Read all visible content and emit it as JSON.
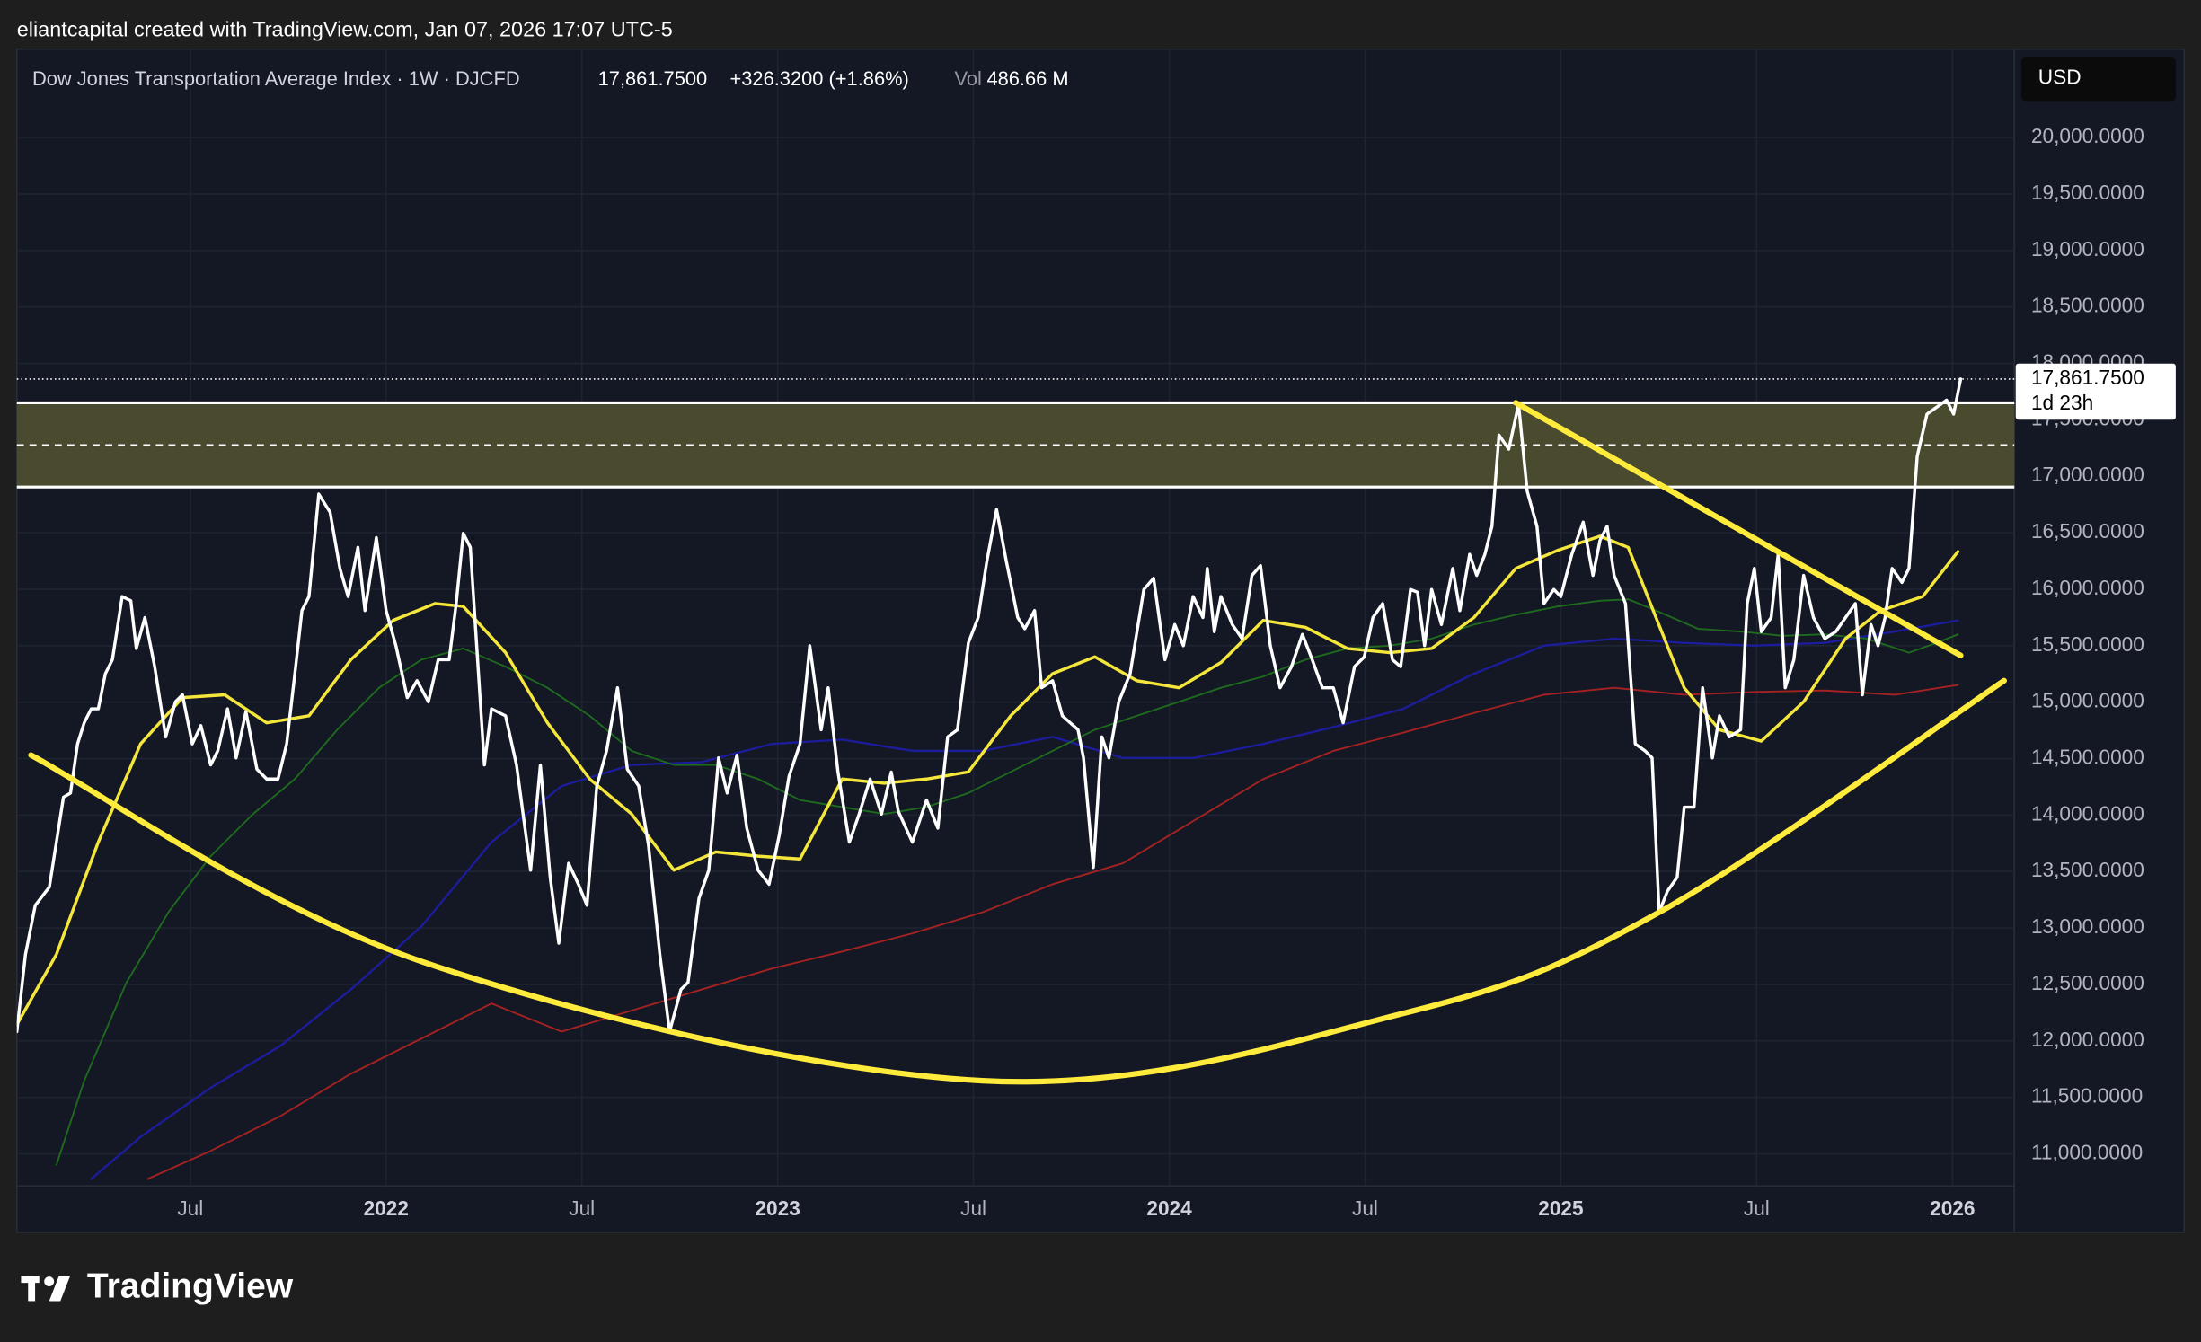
{
  "header": {
    "attribution": "eliantcapital created with TradingView.com, Jan 07, 2026 17:07 UTC-5"
  },
  "footer": {
    "brand": "TradingView"
  },
  "chart_data": {
    "type": "line",
    "title": "Dow Jones Transportation Average Index · 1W · DJCFD",
    "last": {
      "value": 17861.75,
      "label": "17,861.7500"
    },
    "change": "+326.3200 (+1.86%)",
    "volume_label": "Vol",
    "volume": "486.66 M",
    "countdown": "1d 23h",
    "currency": "USD",
    "grid": true,
    "xlim": [
      2021.057,
      2026.158
    ],
    "ylim": [
      10715,
      20783
    ],
    "xticks": [
      {
        "value": 2021.5,
        "label": "Jul"
      },
      2022,
      {
        "value": 2022.5,
        "label": "Jul"
      },
      2023,
      {
        "value": 2023.5,
        "label": "Jul"
      },
      2024,
      {
        "value": 2024.5,
        "label": "Jul"
      },
      2025,
      {
        "value": 2025.5,
        "label": "Jul"
      },
      2026
    ],
    "yticks": [
      {
        "value": 11000,
        "label": "11,000.0000"
      },
      {
        "value": 11500,
        "label": "11,500.0000"
      },
      {
        "value": 12000,
        "label": "12,000.0000"
      },
      {
        "value": 12500,
        "label": "12,500.0000"
      },
      {
        "value": 13000,
        "label": "13,000.0000"
      },
      {
        "value": 13500,
        "label": "13,500.0000"
      },
      {
        "value": 14000,
        "label": "14,000.0000"
      },
      {
        "value": 14500,
        "label": "14,500.0000"
      },
      {
        "value": 15000,
        "label": "15,000.0000"
      },
      {
        "value": 15500,
        "label": "15,500.0000"
      },
      {
        "value": 16000,
        "label": "16,000.0000"
      },
      {
        "value": 16500,
        "label": "16,500.0000"
      },
      {
        "value": 17000,
        "label": "17,000.0000"
      },
      {
        "value": 17500,
        "label": "17,500.0000"
      },
      {
        "value": 18000,
        "label": "18,000.0000"
      },
      {
        "value": 18500,
        "label": "18,500.0000"
      },
      {
        "value": 19000,
        "label": "19,000.0000"
      },
      {
        "value": 19500,
        "label": "19,500.0000"
      },
      {
        "value": 20000,
        "label": "20,000.0000"
      }
    ],
    "zone": {
      "top": 17651,
      "bottom": 16905,
      "mid": 17278
    },
    "series": [
      {
        "color": "#a62222",
        "width": 1.2,
        "x": [
          2021.391,
          2021.552,
          2021.731,
          2021.91,
          2022.09,
          2022.269,
          2022.448,
          2022.627,
          2022.806,
          2022.986,
          2023.165,
          2023.344,
          2023.523,
          2023.702,
          2023.882,
          2024.061,
          2024.24,
          2024.419,
          2024.598,
          2024.778,
          2024.957,
          2025.136,
          2025.315,
          2025.494,
          2025.674,
          2025.853,
          2026.014
        ],
        "values": [
          10777,
          11026,
          11336,
          11709,
          12020,
          12331,
          12082,
          12269,
          12455,
          12641,
          12791,
          12952,
          13139,
          13387,
          13574,
          13947,
          14319,
          14568,
          14730,
          14904,
          15065,
          15127,
          15065,
          15090,
          15103,
          15065,
          15152
        ]
      },
      {
        "color": "#1c1c9c",
        "width": 1.5,
        "x": [
          2021.247,
          2021.373,
          2021.552,
          2021.731,
          2021.91,
          2022.09,
          2022.269,
          2022.448,
          2022.627,
          2022.806,
          2022.986,
          2023.165,
          2023.344,
          2023.523,
          2023.702,
          2023.882,
          2024.061,
          2024.24,
          2024.419,
          2024.598,
          2024.778,
          2024.957,
          2025.136,
          2025.315,
          2025.494,
          2025.674,
          2025.853,
          2026.014
        ],
        "values": [
          10777,
          11150,
          11585,
          11958,
          12455,
          13014,
          13760,
          14257,
          14444,
          14469,
          14630,
          14668,
          14568,
          14568,
          14692,
          14506,
          14506,
          14630,
          14779,
          14941,
          15252,
          15500,
          15562,
          15525,
          15500,
          15525,
          15625,
          15724
        ]
      },
      {
        "color": "#1e6b1e",
        "width": 1.2,
        "x": [
          2021.158,
          2021.229,
          2021.337,
          2021.444,
          2021.552,
          2021.66,
          2021.767,
          2021.875,
          2021.982,
          2022.09,
          2022.197,
          2022.305,
          2022.412,
          2022.52,
          2022.627,
          2022.735,
          2022.842,
          2022.95,
          2023.057,
          2023.165,
          2023.272,
          2023.38,
          2023.487,
          2023.595,
          2023.702,
          2023.81,
          2023.917,
          2024.025,
          2024.132,
          2024.24,
          2024.348,
          2024.455,
          2024.563,
          2024.67,
          2024.778,
          2024.885,
          2024.993,
          2025.1,
          2025.172,
          2025.243,
          2025.351,
          2025.459,
          2025.566,
          2025.674,
          2025.781,
          2025.889,
          2025.96,
          2026.014
        ],
        "values": [
          10901,
          11647,
          12517,
          13139,
          13636,
          14009,
          14319,
          14755,
          15127,
          15376,
          15475,
          15314,
          15127,
          14879,
          14568,
          14444,
          14444,
          14319,
          14133,
          14071,
          14009,
          14071,
          14195,
          14382,
          14568,
          14755,
          14879,
          15003,
          15127,
          15227,
          15376,
          15475,
          15500,
          15562,
          15687,
          15774,
          15848,
          15898,
          15911,
          15811,
          15649,
          15625,
          15587,
          15600,
          15562,
          15438,
          15525,
          15600
        ]
      },
      {
        "color": "#f5e63c",
        "width": 2.2,
        "x": [
          2021.057,
          2021.158,
          2021.265,
          2021.373,
          2021.48,
          2021.588,
          2021.695,
          2021.803,
          2021.91,
          2022.018,
          2022.125,
          2022.197,
          2022.305,
          2022.412,
          2022.52,
          2022.627,
          2022.735,
          2022.842,
          2022.95,
          2023.057,
          2023.165,
          2023.272,
          2023.38,
          2023.487,
          2023.595,
          2023.702,
          2023.81,
          2023.917,
          2024.025,
          2024.132,
          2024.24,
          2024.348,
          2024.455,
          2024.563,
          2024.67,
          2024.778,
          2024.885,
          2024.993,
          2025.1,
          2025.172,
          2025.243,
          2025.315,
          2025.405,
          2025.512,
          2025.62,
          2025.727,
          2025.817,
          2025.924,
          2026.014
        ],
        "values": [
          12144,
          12766,
          13760,
          14630,
          15040,
          15065,
          14817,
          14879,
          15376,
          15724,
          15873,
          15848,
          15438,
          14817,
          14319,
          14009,
          13512,
          13673,
          13636,
          13611,
          14319,
          14282,
          14319,
          14382,
          14879,
          15252,
          15401,
          15190,
          15127,
          15351,
          15724,
          15662,
          15475,
          15438,
          15475,
          15749,
          16184,
          16346,
          16470,
          16370,
          15749,
          15127,
          14755,
          14655,
          15003,
          15562,
          15811,
          15935,
          16333
        ]
      },
      {
        "color": "#ffffff",
        "width": 2.2,
        "x": [
          2021.057,
          2021.079,
          2021.104,
          2021.14,
          2021.158,
          2021.176,
          2021.194,
          2021.212,
          2021.229,
          2021.247,
          2021.265,
          2021.283,
          2021.301,
          2021.326,
          2021.348,
          2021.362,
          2021.384,
          2021.409,
          2021.437,
          2021.462,
          2021.48,
          2021.505,
          2021.527,
          2021.552,
          2021.57,
          2021.595,
          2021.617,
          2021.642,
          2021.67,
          2021.695,
          2021.724,
          2021.746,
          2021.767,
          2021.785,
          2021.803,
          2021.828,
          2021.857,
          2021.882,
          2021.903,
          2021.928,
          2021.946,
          2021.975,
          2022.0,
          2022.025,
          2022.054,
          2022.079,
          2022.108,
          2022.133,
          2022.161,
          2022.179,
          2022.197,
          2022.215,
          2022.251,
          2022.269,
          2022.305,
          2022.333,
          2022.369,
          2022.394,
          2022.419,
          2022.441,
          2022.466,
          2022.491,
          2022.513,
          2022.538,
          2022.563,
          2022.591,
          2022.616,
          2022.645,
          2022.67,
          2022.699,
          2022.724,
          2022.753,
          2022.771,
          2022.799,
          2022.824,
          2022.849,
          2022.871,
          2022.896,
          2022.921,
          2022.95,
          2022.978,
          2023.004,
          2023.029,
          2023.057,
          2023.082,
          2023.111,
          2023.129,
          2023.154,
          2023.183,
          2023.208,
          2023.236,
          2023.265,
          2023.29,
          2023.308,
          2023.344,
          2023.38,
          2023.409,
          2023.434,
          2023.459,
          2023.487,
          2023.512,
          2023.534,
          2023.559,
          2023.584,
          2023.613,
          2023.631,
          2023.656,
          2023.674,
          2023.702,
          2023.727,
          2023.767,
          2023.781,
          2023.806,
          2023.828,
          2023.846,
          2023.871,
          2023.9,
          2023.935,
          2023.96,
          2023.989,
          2024.014,
          2024.036,
          2024.061,
          2024.086,
          2024.097,
          2024.115,
          2024.132,
          2024.161,
          2024.186,
          2024.211,
          2024.233,
          2024.258,
          2024.283,
          2024.312,
          2024.34,
          2024.365,
          2024.391,
          2024.419,
          2024.444,
          2024.473,
          2024.498,
          2024.52,
          2024.545,
          2024.57,
          2024.591,
          2024.616,
          2024.634,
          2024.652,
          2024.67,
          2024.695,
          2024.724,
          2024.742,
          2024.767,
          2024.785,
          2024.806,
          2024.824,
          2024.842,
          2024.867,
          2024.892,
          2024.914,
          2024.939,
          2024.957,
          2024.982,
          2025.0,
          2025.028,
          2025.057,
          2025.082,
          2025.1,
          2025.118,
          2025.136,
          2025.165,
          2025.19,
          2025.215,
          2025.233,
          2025.251,
          2025.272,
          2025.297,
          2025.315,
          2025.34,
          2025.362,
          2025.387,
          2025.405,
          2025.43,
          2025.459,
          2025.476,
          2025.494,
          2025.512,
          2025.537,
          2025.555,
          2025.573,
          2025.595,
          2025.62,
          2025.645,
          2025.674,
          2025.702,
          2025.727,
          2025.752,
          2025.77,
          2025.792,
          2025.81,
          2025.828,
          2025.846,
          2025.871,
          2025.889,
          2025.91,
          2025.935,
          2025.96,
          2025.985,
          2026.003,
          2026.021
        ],
        "values": [
          12082,
          12766,
          13200,
          13362,
          13760,
          14158,
          14195,
          14630,
          14817,
          14941,
          14941,
          15252,
          15376,
          15935,
          15898,
          15475,
          15749,
          15314,
          14692,
          15003,
          15065,
          14630,
          14792,
          14444,
          14568,
          14941,
          14506,
          14916,
          14406,
          14319,
          14319,
          14630,
          15252,
          15811,
          15935,
          16843,
          16681,
          16184,
          15935,
          16371,
          15811,
          16457,
          15811,
          15500,
          15040,
          15190,
          15003,
          15376,
          15376,
          15873,
          16495,
          16371,
          14444,
          14941,
          14879,
          14444,
          13511,
          14444,
          13449,
          12865,
          13573,
          13387,
          13201,
          14257,
          14568,
          15127,
          14406,
          14257,
          13735,
          12766,
          12082,
          12455,
          12517,
          13263,
          13511,
          14506,
          14195,
          14530,
          13884,
          13511,
          13387,
          13822,
          14344,
          14630,
          15500,
          14755,
          15127,
          14381,
          13760,
          14008,
          14319,
          14008,
          14381,
          14033,
          13760,
          14133,
          13884,
          14692,
          14755,
          15525,
          15749,
          16246,
          16706,
          16246,
          15749,
          15650,
          15811,
          15127,
          15190,
          14879,
          14755,
          14506,
          13536,
          14692,
          14506,
          15003,
          15252,
          15998,
          16097,
          15376,
          15687,
          15500,
          15935,
          15749,
          16184,
          15624,
          15935,
          15687,
          15562,
          16122,
          16209,
          15500,
          15127,
          15314,
          15600,
          15376,
          15127,
          15127,
          14817,
          15314,
          15401,
          15749,
          15873,
          15376,
          15314,
          15998,
          15973,
          15500,
          15998,
          15687,
          16184,
          15811,
          16309,
          16122,
          16309,
          16557,
          17365,
          17240,
          17638,
          16868,
          16557,
          15873,
          15998,
          15935,
          16309,
          16594,
          16122,
          16433,
          16557,
          16122,
          15873,
          14630,
          14568,
          14506,
          13139,
          13325,
          13449,
          14070,
          14070,
          15127,
          14506,
          14879,
          14692,
          14755,
          15873,
          16184,
          15624,
          15749,
          16309,
          15127,
          15376,
          16122,
          15749,
          15562,
          15624,
          15749,
          15873,
          15065,
          15687,
          15500,
          15749,
          16184,
          16060,
          16184,
          17178,
          17551,
          17613,
          17675,
          17551,
          17861.75
        ]
      }
    ],
    "trendline": {
      "color": "#ffeb3b",
      "x": [
        2024.885,
        2026.021
      ],
      "values": [
        17651,
        15413
      ]
    },
    "curve": {
      "color": "#ffeb3b",
      "x": [
        2021.093,
        2022.09,
        2023.523,
        2024.598,
        2025.251,
        2026.132
      ],
      "values": [
        14531,
        12704,
        11647,
        12244,
        13139,
        15190
      ]
    }
  }
}
